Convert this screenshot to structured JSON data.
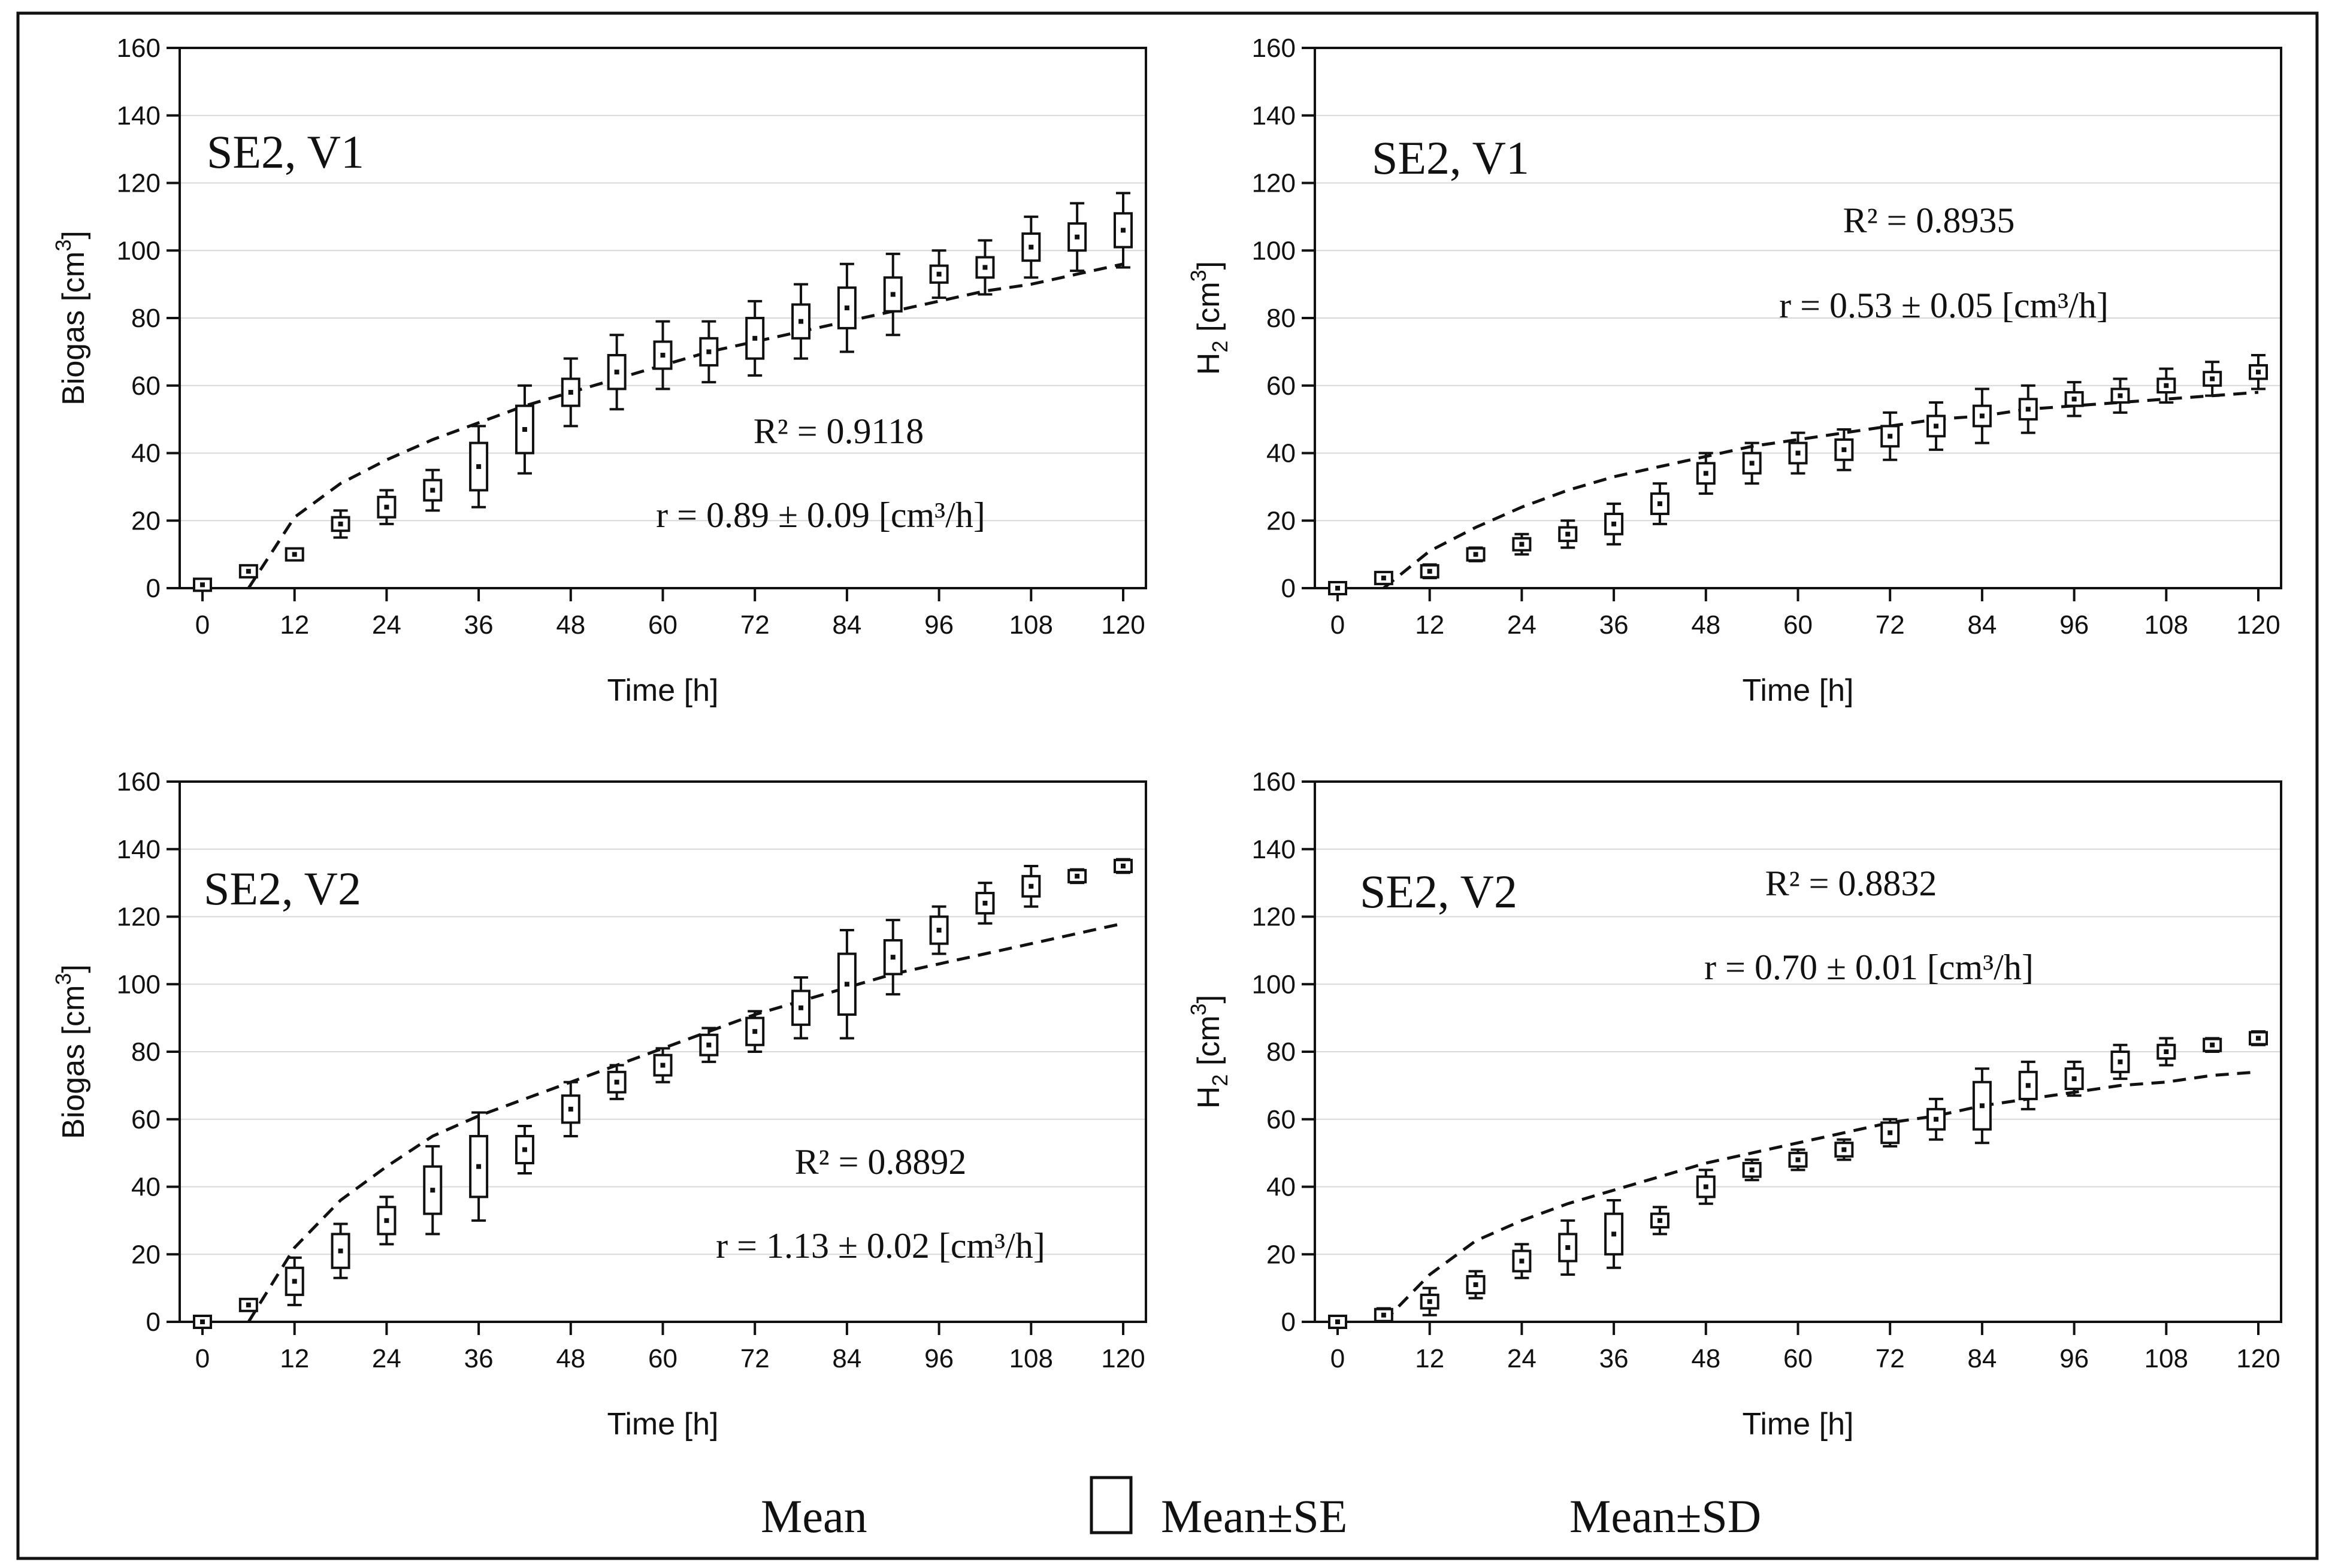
{
  "legend": {
    "mean": "Mean",
    "mean_se": "Mean±SE",
    "mean_sd": "Mean±SD"
  },
  "chart_data": [
    {
      "type": "box",
      "panel_label": "SE2, V1",
      "xlabel": "Time [h]",
      "ylabel": "Biogas [cm3]",
      "ylabel_main": "Biogas [cm",
      "ylabel_sup": "3",
      "ylabel_end": "]",
      "xlim": [
        0,
        120
      ],
      "ylim": [
        0,
        160
      ],
      "xticks": [
        "0",
        "12",
        "24",
        "36",
        "48",
        "60",
        "72",
        "84",
        "96",
        "108",
        "120"
      ],
      "yticks": [
        "0",
        "20",
        "40",
        "60",
        "80",
        "100",
        "120",
        "140",
        "160"
      ],
      "r2_text": "R² = 0.9118",
      "rate_text": "r = 0.89 ± 0.09 [cm³/h]",
      "x": [
        0,
        6,
        12,
        18,
        24,
        30,
        36,
        42,
        48,
        54,
        60,
        66,
        72,
        78,
        84,
        90,
        96,
        102,
        108,
        114,
        120
      ],
      "mean": [
        1,
        5,
        10,
        19,
        24,
        29,
        36,
        47,
        58,
        64,
        69,
        70,
        74,
        79,
        83,
        87,
        93,
        95,
        101,
        104,
        106
      ],
      "se": [
        0.3,
        0.6,
        0.8,
        2,
        3,
        3,
        7,
        7,
        4,
        5,
        4,
        4,
        6,
        5,
        6,
        5,
        2.5,
        3,
        4,
        4,
        5
      ],
      "sd": [
        0.5,
        1,
        1.5,
        4,
        5,
        6,
        12,
        13,
        10,
        11,
        10,
        9,
        11,
        11,
        13,
        12,
        7,
        8,
        9,
        10,
        11
      ],
      "fit_x": [
        6,
        12,
        18,
        24,
        30,
        36,
        42,
        48,
        54,
        60,
        66,
        72,
        78,
        84,
        90,
        96,
        102,
        108,
        114,
        120
      ],
      "fit_y": [
        0,
        21,
        31,
        38,
        44,
        49,
        54,
        58,
        62,
        66,
        70,
        73,
        76,
        79,
        82,
        85,
        88,
        90,
        93,
        96
      ]
    },
    {
      "type": "box",
      "panel_label": "SE2, V1",
      "xlabel": "Time [h]",
      "ylabel": "H2 [cm3]",
      "ylabel_main": "H",
      "ylabel_sub": "2",
      "ylabel_rest": " [cm",
      "ylabel_sup": "3",
      "ylabel_end": "]",
      "xlim": [
        0,
        120
      ],
      "ylim": [
        0,
        160
      ],
      "xticks": [
        "0",
        "12",
        "24",
        "36",
        "48",
        "60",
        "72",
        "84",
        "96",
        "108",
        "120"
      ],
      "yticks": [
        "0",
        "20",
        "40",
        "60",
        "80",
        "100",
        "120",
        "140",
        "160"
      ],
      "r2_text": "R² = 0.8935",
      "rate_text": "r = 0.53 ± 0.05 [cm³/h]",
      "x": [
        0,
        6,
        12,
        18,
        24,
        30,
        36,
        42,
        48,
        54,
        60,
        66,
        72,
        78,
        84,
        90,
        96,
        102,
        108,
        114,
        120
      ],
      "mean": [
        0,
        3,
        5,
        10,
        13,
        16,
        19,
        25,
        34,
        37,
        40,
        41,
        45,
        48,
        51,
        53,
        56,
        57,
        60,
        62,
        64
      ],
      "se": [
        0.3,
        0.8,
        1,
        1,
        1.5,
        2,
        3,
        3,
        3,
        3,
        3,
        3,
        3,
        3,
        3,
        3,
        2,
        2,
        2,
        2,
        2
      ],
      "sd": [
        0.5,
        1.5,
        2,
        2,
        3,
        4,
        6,
        6,
        6,
        6,
        6,
        6,
        7,
        7,
        8,
        7,
        5,
        5,
        5,
        5,
        5
      ],
      "fit_x": [
        6,
        12,
        18,
        24,
        30,
        36,
        42,
        48,
        54,
        60,
        66,
        72,
        78,
        84,
        90,
        96,
        102,
        108,
        114,
        120
      ],
      "fit_y": [
        0,
        11,
        18,
        24,
        29,
        33,
        36,
        39,
        42,
        44,
        46,
        48,
        50,
        51,
        53,
        54,
        55,
        56,
        57,
        58
      ]
    },
    {
      "type": "box",
      "panel_label": "SE2, V2",
      "xlabel": "Time [h]",
      "ylabel": "Biogas [cm3]",
      "ylabel_main": "Biogas [cm",
      "ylabel_sup": "3",
      "ylabel_end": "]",
      "xlim": [
        0,
        120
      ],
      "ylim": [
        0,
        160
      ],
      "xticks": [
        "0",
        "12",
        "24",
        "36",
        "48",
        "60",
        "72",
        "84",
        "96",
        "108",
        "120"
      ],
      "yticks": [
        "0",
        "20",
        "40",
        "60",
        "80",
        "100",
        "120",
        "140",
        "160"
      ],
      "r2_text": "R² = 0.8892",
      "rate_text": "r = 1.13 ± 0.02 [cm³/h]",
      "x": [
        0,
        6,
        12,
        18,
        24,
        30,
        36,
        42,
        48,
        54,
        60,
        66,
        72,
        78,
        84,
        90,
        96,
        102,
        108,
        114,
        120
      ],
      "mean": [
        0,
        5,
        12,
        21,
        30,
        39,
        46,
        51,
        63,
        71,
        76,
        82,
        86,
        93,
        100,
        108,
        116,
        124,
        129,
        132,
        135
      ],
      "se": [
        0.3,
        1,
        4,
        5,
        4,
        7,
        9,
        4,
        4,
        3,
        3,
        3,
        4,
        5,
        9,
        5,
        4,
        3,
        3,
        1.5,
        1.5
      ],
      "sd": [
        0.5,
        1.5,
        7,
        8,
        7,
        13,
        16,
        7,
        8,
        5,
        5,
        5,
        6,
        9,
        16,
        11,
        7,
        6,
        6,
        2,
        2
      ],
      "fit_x": [
        6,
        12,
        18,
        24,
        30,
        36,
        42,
        48,
        54,
        60,
        66,
        72,
        78,
        84,
        90,
        96,
        102,
        108,
        114,
        120
      ],
      "fit_y": [
        0,
        22,
        36,
        46,
        55,
        61,
        66,
        71,
        76,
        81,
        86,
        91,
        95,
        99,
        103,
        106,
        109,
        112,
        115,
        118
      ]
    },
    {
      "type": "box",
      "panel_label": "SE2, V2",
      "xlabel": "Time [h]",
      "ylabel": "H2 [cm3]",
      "ylabel_main": "H",
      "ylabel_sub": "2",
      "ylabel_rest": " [cm",
      "ylabel_sup": "3",
      "ylabel_end": "]",
      "xlim": [
        0,
        120
      ],
      "ylim": [
        0,
        160
      ],
      "xticks": [
        "0",
        "12",
        "24",
        "36",
        "48",
        "60",
        "72",
        "84",
        "96",
        "108",
        "120"
      ],
      "yticks": [
        "0",
        "20",
        "40",
        "60",
        "80",
        "100",
        "120",
        "140",
        "160"
      ],
      "r2_text": "R² = 0.8832",
      "rate_text": "r = 0.70 ± 0.01 [cm³/h]",
      "x": [
        0,
        6,
        12,
        18,
        24,
        30,
        36,
        42,
        48,
        54,
        60,
        66,
        72,
        78,
        84,
        90,
        96,
        102,
        108,
        114,
        120
      ],
      "mean": [
        0,
        2,
        6,
        11,
        18,
        22,
        26,
        30,
        40,
        45,
        48,
        51,
        56,
        60,
        64,
        70,
        72,
        77,
        80,
        82,
        84
      ],
      "se": [
        0.3,
        1,
        2,
        2.5,
        3,
        4,
        6,
        2,
        3,
        2,
        2,
        2,
        3,
        3,
        7,
        4,
        3,
        3,
        2,
        1.5,
        1.5
      ],
      "sd": [
        0.5,
        2,
        4,
        4,
        5,
        8,
        10,
        4,
        5,
        3,
        3,
        3,
        4,
        6,
        11,
        7,
        5,
        5,
        4,
        2,
        2
      ],
      "fit_x": [
        6,
        12,
        18,
        24,
        30,
        36,
        42,
        48,
        54,
        60,
        66,
        72,
        78,
        84,
        90,
        96,
        102,
        108,
        114,
        120
      ],
      "fit_y": [
        0,
        14,
        24,
        30,
        35,
        39,
        43,
        47,
        50,
        53,
        56,
        59,
        61,
        64,
        66,
        68,
        70,
        71,
        73,
        74
      ]
    }
  ]
}
